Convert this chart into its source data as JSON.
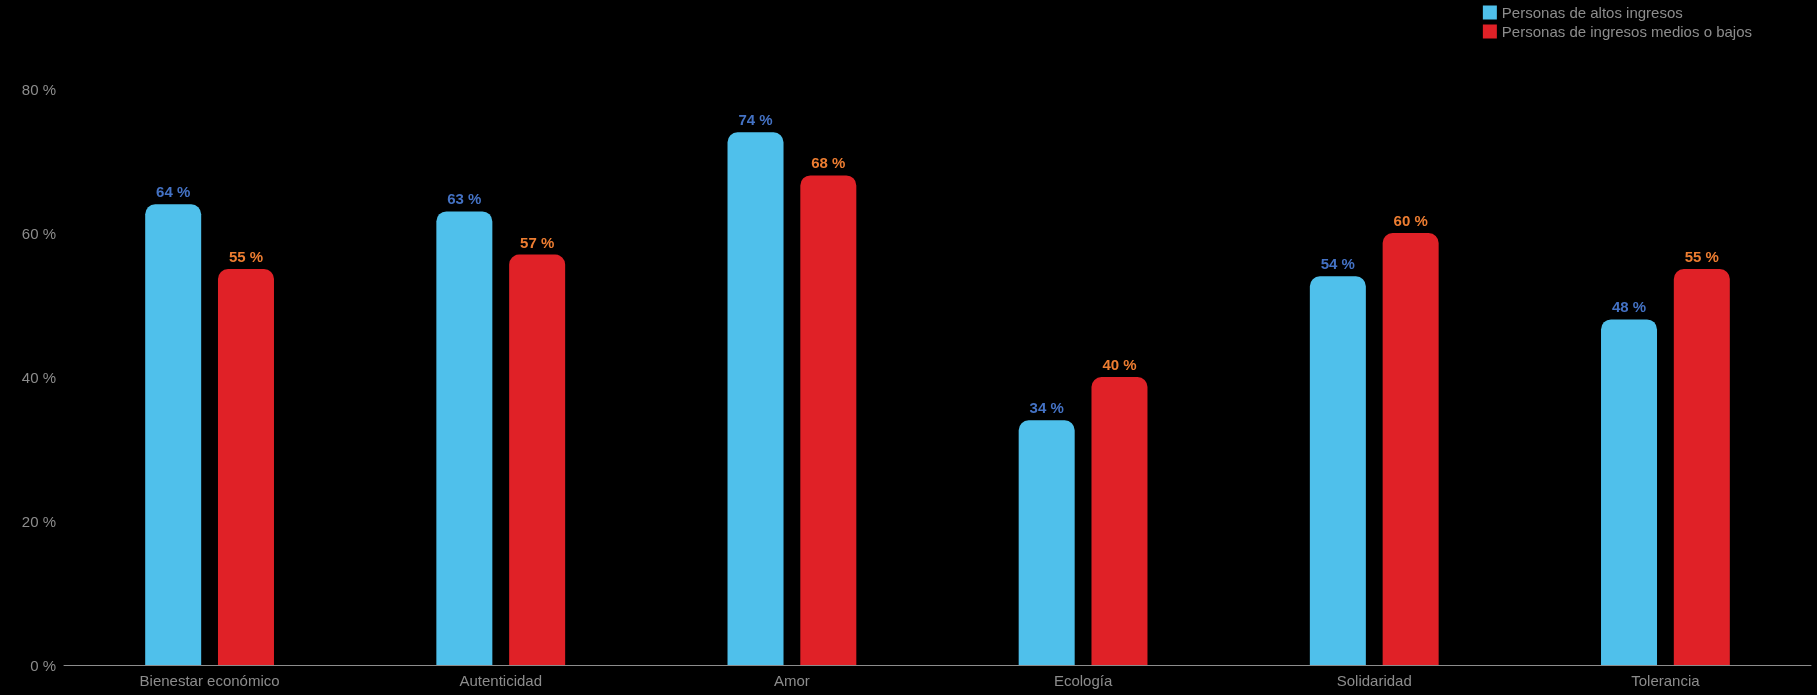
{
  "chart_data": {
    "type": "bar",
    "categories": [
      "Bienestar económico",
      "Autenticidad",
      "Amor",
      "Ecología",
      "Solidaridad",
      "Tolerancia"
    ],
    "series": [
      {
        "name": "Personas de altos ingresos",
        "color": "#4fc0eb",
        "values": [
          64,
          63,
          74,
          34,
          54,
          48
        ],
        "value_labels": [
          "64 %",
          "63 %",
          "74 %",
          "34 %",
          "54 %",
          "48 %"
        ]
      },
      {
        "name": "Personas de ingresos medios o bajos",
        "color": "#e02127",
        "values": [
          55,
          57,
          68,
          40,
          60,
          55
        ],
        "value_labels": [
          "55 %",
          "57 %",
          "68 %",
          "40 %",
          "60 %",
          "55 %"
        ]
      }
    ],
    "ylim": [
      0,
      80
    ],
    "yticks": [
      {
        "value": 0,
        "label": "0 %"
      },
      {
        "value": 20,
        "label": "20 %"
      },
      {
        "value": 40,
        "label": "40 %"
      },
      {
        "value": 60,
        "label": "60 %"
      },
      {
        "value": 80,
        "label": "80 %"
      }
    ],
    "grid": false,
    "legend": "top right"
  }
}
